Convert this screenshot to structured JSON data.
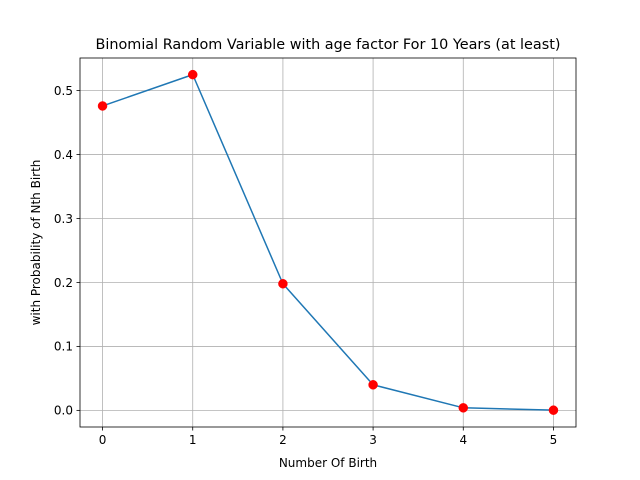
{
  "chart_data": {
    "type": "line",
    "title": "Binomial Random Variable with age factor For 10 Years (at least)",
    "xlabel": "Number Of Birth",
    "ylabel": "with Probability of Nth Birth",
    "x": [
      0,
      1,
      2,
      3,
      4,
      5
    ],
    "y": [
      0.476,
      0.525,
      0.198,
      0.04,
      0.004,
      0.0003
    ],
    "xlim": [
      -0.25,
      5.25
    ],
    "ylim": [
      -0.026,
      0.551
    ],
    "xticks": [
      0,
      1,
      2,
      3,
      4,
      5
    ],
    "xtick_labels": [
      "0",
      "1",
      "2",
      "3",
      "4",
      "5"
    ],
    "yticks": [
      0.0,
      0.1,
      0.2,
      0.3,
      0.4,
      0.5
    ],
    "ytick_labels": [
      "0.0",
      "0.1",
      "0.2",
      "0.3",
      "0.4",
      "0.5"
    ],
    "grid": true,
    "line_color": "#1f77b4",
    "marker_color": "#ff0000"
  }
}
